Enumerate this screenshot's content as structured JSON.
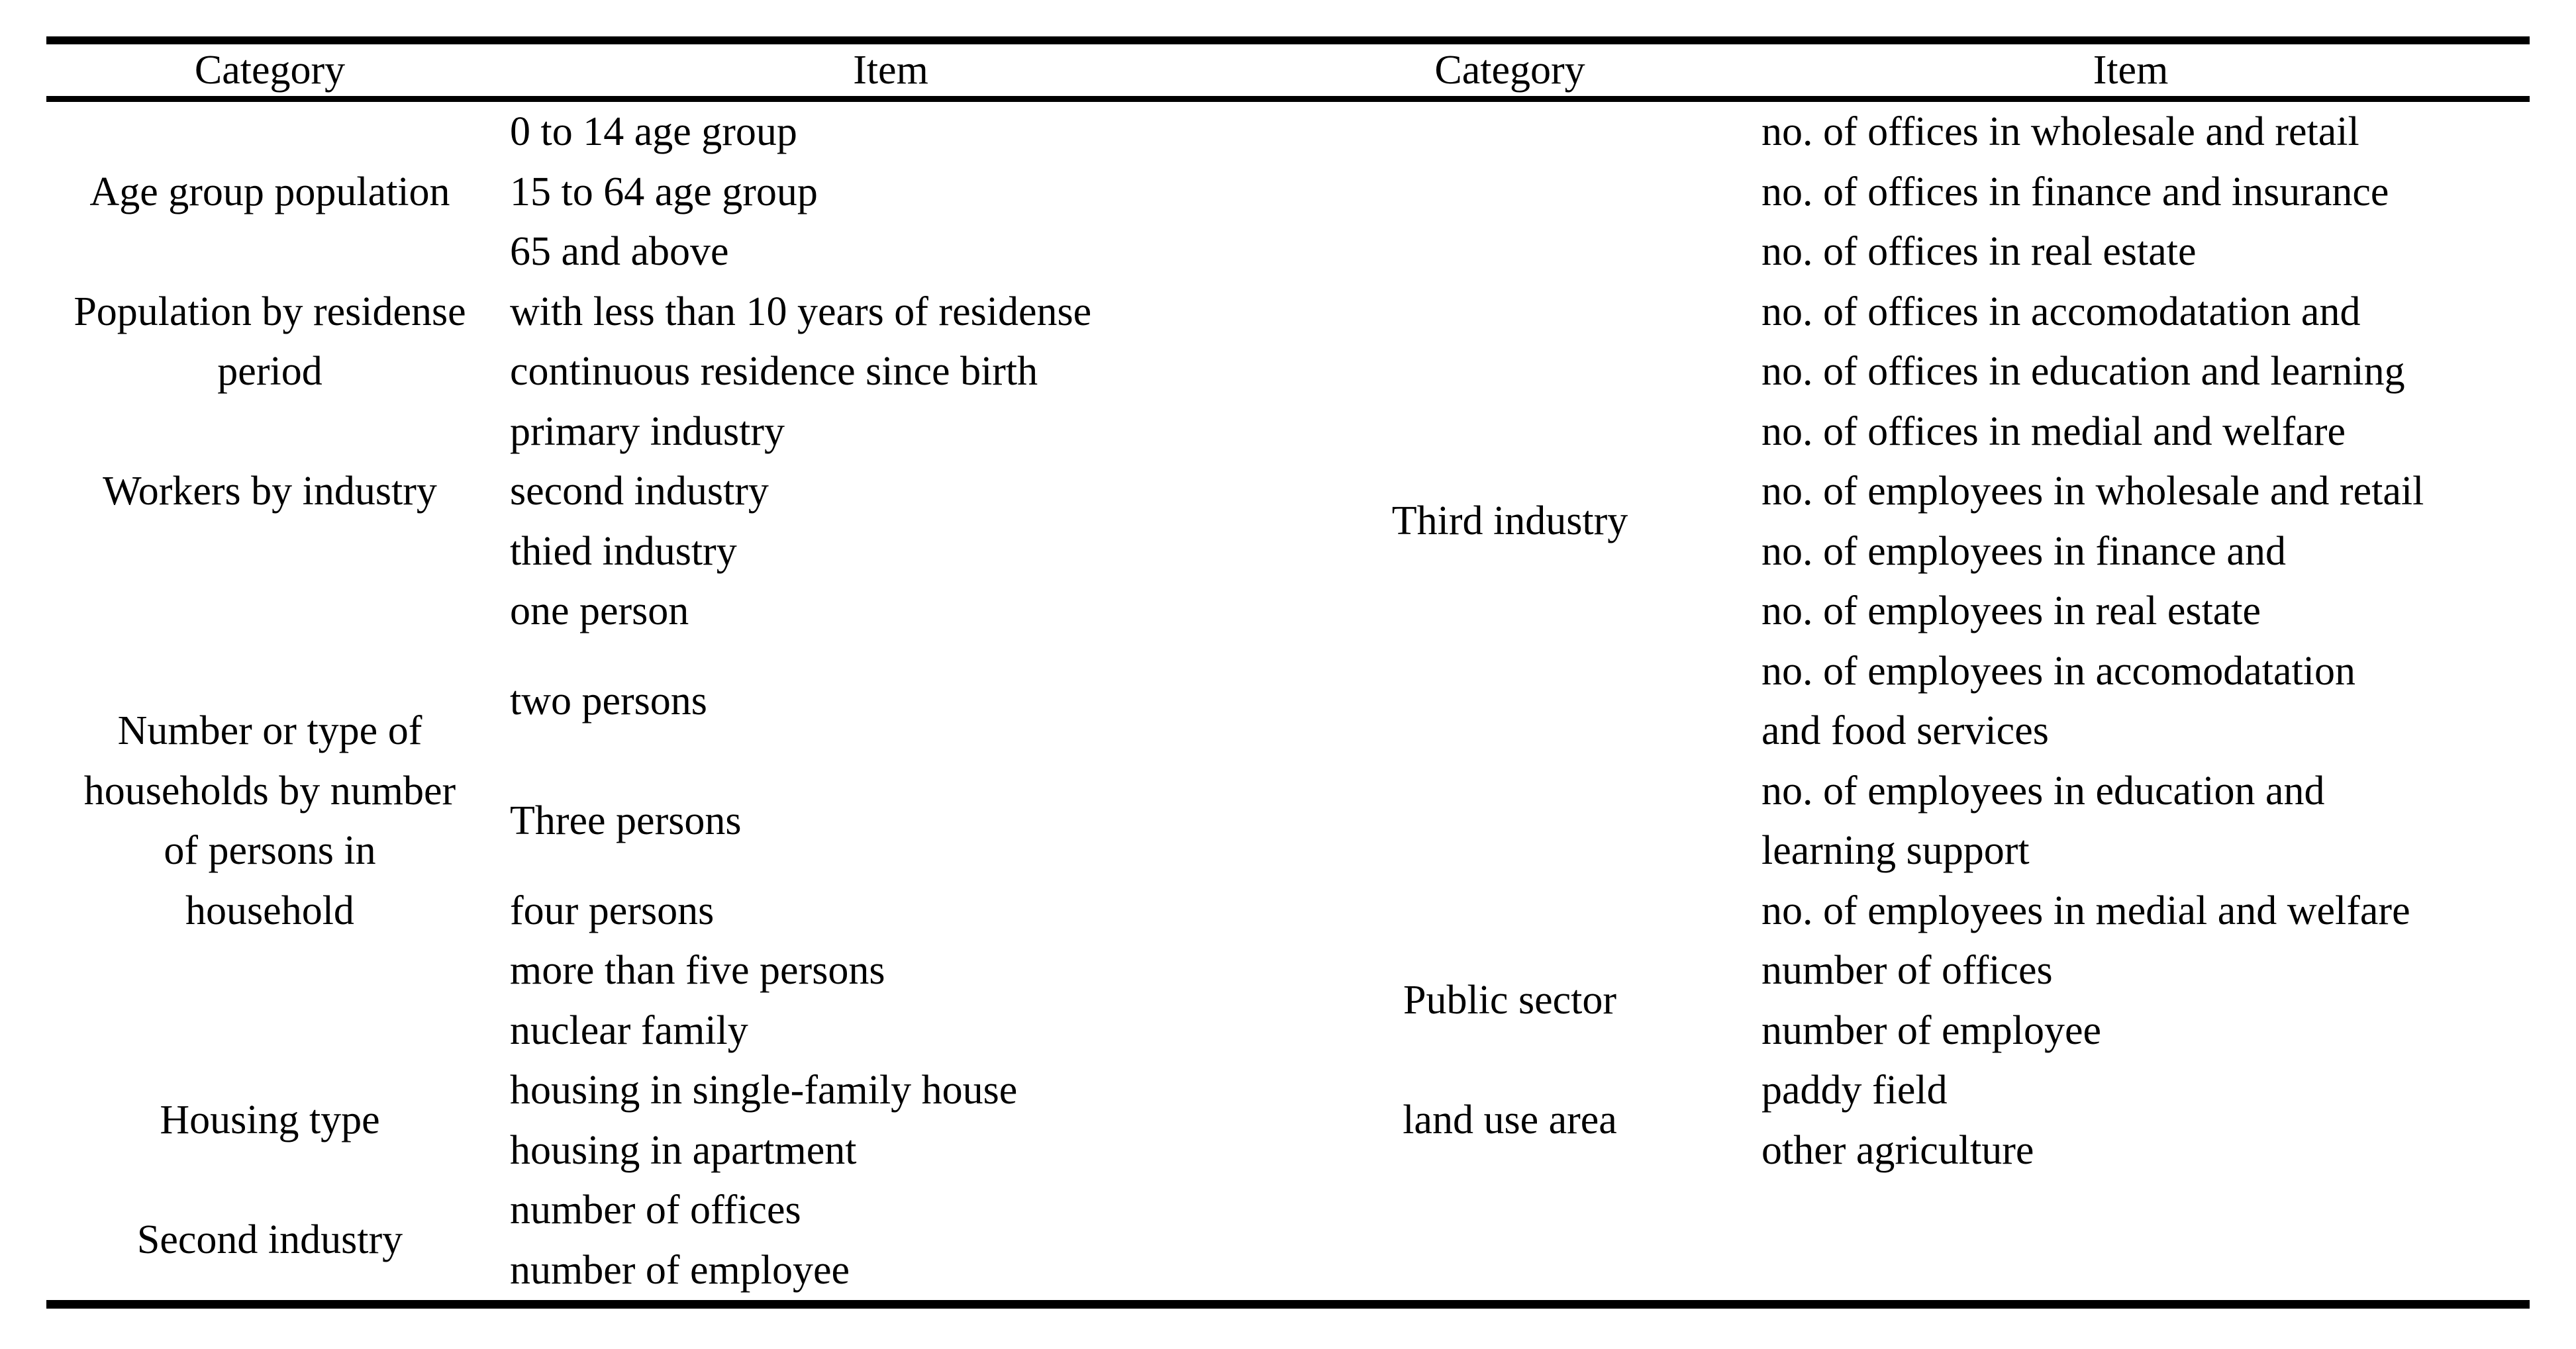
{
  "page": {
    "background": "#ffffff",
    "text_color": "#000000"
  },
  "headers": {
    "left_category": "Category",
    "left_item": "Item",
    "right_category": "Category",
    "right_item": "Item"
  },
  "left_categories": [
    "Age group population",
    "Population by residense\nperiod",
    "Workers by industry",
    "Number or type of\nhouseholds by number\nof persons in\nhousehold",
    "Housing type",
    "Second industry"
  ],
  "left_items": [
    "0 to 14 age group",
    "15 to 64 age group",
    "65 and above",
    "with less than 10 years of residense",
    "continuous residence since birth",
    "primary industry",
    "second industry",
    "thied industry",
    "one person",
    "two persons",
    "Three persons",
    "four persons",
    "more than five persons",
    "nuclear family",
    "housing in single-family house",
    "housing in apartment",
    "number of offices",
    "number of employee"
  ],
  "right_categories": [
    "Third industry",
    "Public sector",
    "land use area"
  ],
  "right_items": [
    "no. of offices in wholesale and retail",
    "no. of offices in finance and insurance",
    "no. of offices in real estate",
    "no. of offices in accomodatation and",
    "no. of offices in education and learning",
    "no. of offices in medial and welfare",
    "no. of employees in wholesale and retail",
    "no. of employees in finance and",
    "no. of employees in real estate",
    "no. of employees in accomodatation\nand food services",
    "no. of employees in education and\nlearning support",
    "no. of employees in medial and welfare",
    "number of offices",
    "number of employee",
    "paddy field",
    "other agriculture"
  ]
}
